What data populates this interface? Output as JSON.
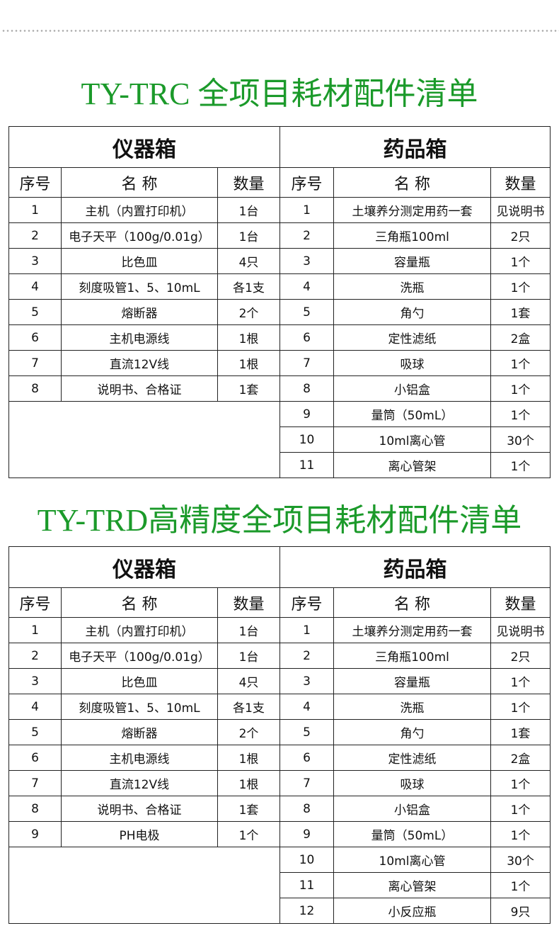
{
  "tables": [
    {
      "title": "TY-TRC 全项目耗材配件清单",
      "left_box": "仪器箱",
      "right_box": "药品箱",
      "headers": [
        "序号",
        "名  称",
        "数量",
        "序号",
        "名  称",
        "数量"
      ],
      "left_rows": [
        [
          "1",
          "主机（内置打印机）",
          "1台"
        ],
        [
          "2",
          "电子天平（100g/0.01g）",
          "1台"
        ],
        [
          "3",
          "比色皿",
          "4只"
        ],
        [
          "4",
          "刻度吸管1、5、10mL",
          "各1支"
        ],
        [
          "5",
          "熔断器",
          "2个"
        ],
        [
          "6",
          "主机电源线",
          "1根"
        ],
        [
          "7",
          "直流12V线",
          "1根"
        ],
        [
          "8",
          "说明书、合格证",
          "1套"
        ]
      ],
      "right_rows": [
        [
          "1",
          "土壤养分测定用药一套",
          "见说明书"
        ],
        [
          "2",
          "三角瓶100ml",
          "2只"
        ],
        [
          "3",
          "容量瓶",
          "1个"
        ],
        [
          "4",
          "洗瓶",
          "1个"
        ],
        [
          "5",
          "角勺",
          "1套"
        ],
        [
          "6",
          "定性滤纸",
          "2盒"
        ],
        [
          "7",
          "吸球",
          "1个"
        ],
        [
          "8",
          "小铝盒",
          "1个"
        ],
        [
          "9",
          "量筒（50mL）",
          "1个"
        ],
        [
          "10",
          "10ml离心管",
          "30个"
        ],
        [
          "11",
          "离心管架",
          "1个"
        ]
      ]
    },
    {
      "title": "TY-TRD高精度全项目耗材配件清单",
      "left_box": "仪器箱",
      "right_box": "药品箱",
      "headers": [
        "序号",
        "名  称",
        "数量",
        "序号",
        "名  称",
        "数量"
      ],
      "left_rows": [
        [
          "1",
          "主机（内置打印机）",
          "1台"
        ],
        [
          "2",
          "电子天平（100g/0.01g）",
          "1台"
        ],
        [
          "3",
          "比色皿",
          "4只"
        ],
        [
          "4",
          "刻度吸管1、5、10mL",
          "各1支"
        ],
        [
          "5",
          "熔断器",
          "2个"
        ],
        [
          "6",
          "主机电源线",
          "1根"
        ],
        [
          "7",
          "直流12V线",
          "1根"
        ],
        [
          "8",
          "说明书、合格证",
          "1套"
        ],
        [
          "9",
          "PH电极",
          "1个"
        ]
      ],
      "right_rows": [
        [
          "1",
          "土壤养分测定用药一套",
          "见说明书"
        ],
        [
          "2",
          "三角瓶100ml",
          "2只"
        ],
        [
          "3",
          "容量瓶",
          "1个"
        ],
        [
          "4",
          "洗瓶",
          "1个"
        ],
        [
          "5",
          "角勺",
          "1套"
        ],
        [
          "6",
          "定性滤纸",
          "2盒"
        ],
        [
          "7",
          "吸球",
          "1个"
        ],
        [
          "8",
          "小铝盒",
          "1个"
        ],
        [
          "9",
          "量筒（50mL）",
          "1个"
        ],
        [
          "10",
          "10ml离心管",
          "30个"
        ],
        [
          "11",
          "离心管架",
          "1个"
        ],
        [
          "12",
          "小反应瓶",
          "9只"
        ]
      ]
    }
  ]
}
